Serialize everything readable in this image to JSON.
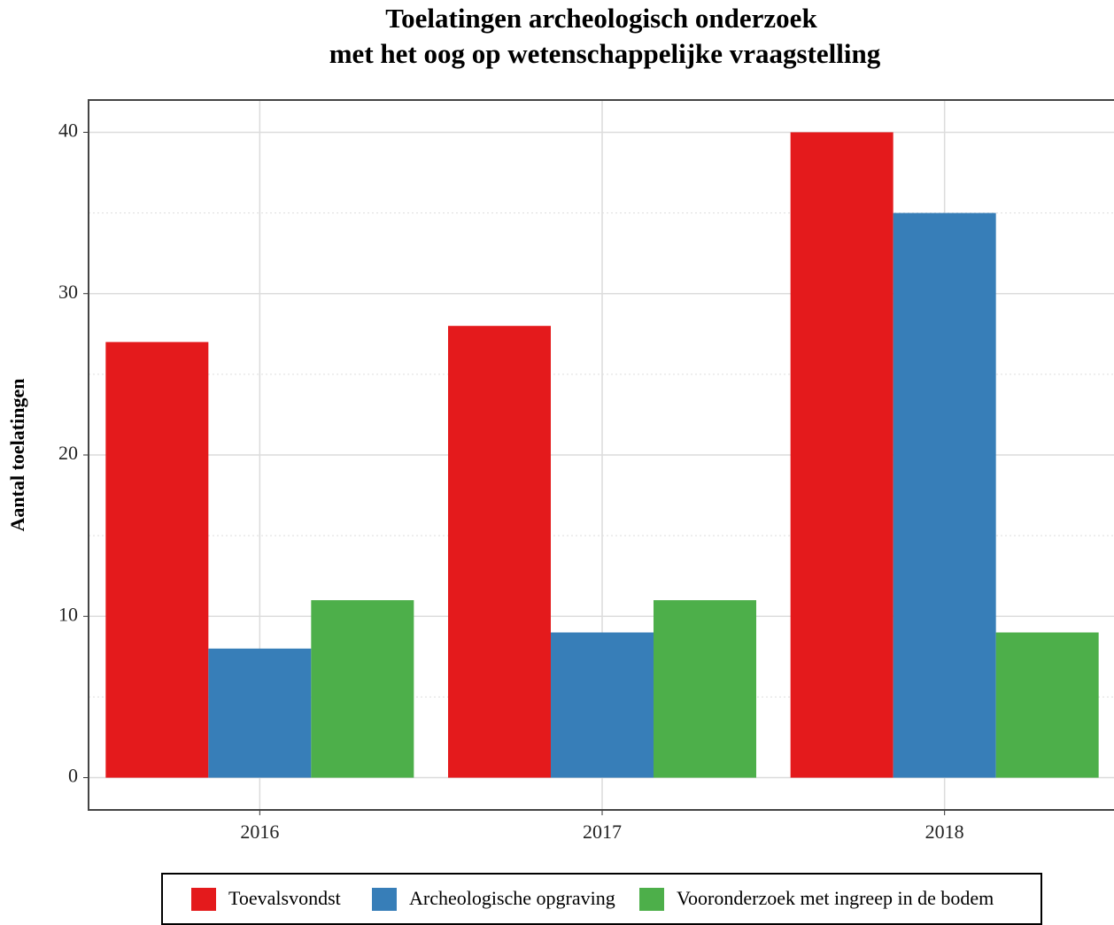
{
  "chart_data": {
    "type": "bar",
    "title": [
      "Toelatingen archeologisch onderzoek",
      "met het oog op wetenschappelijke vraagstelling"
    ],
    "y_label": "Aantal toelatingen",
    "categories": [
      "2016",
      "2017",
      "2018"
    ],
    "series": [
      {
        "name": "Toevalsvondst",
        "color": "#e41a1c",
        "values": [
          27,
          28,
          40
        ]
      },
      {
        "name": "Archeologische opgraving",
        "color": "#377eb8",
        "values": [
          8,
          9,
          35
        ]
      },
      {
        "name": "Vooronderzoek met ingreep in de bodem",
        "color": "#4daf4a",
        "values": [
          11,
          11,
          9
        ]
      }
    ],
    "ylim": [
      -2,
      42
    ],
    "yticks": [
      0,
      10,
      20,
      30,
      40
    ],
    "y_minor_ticks": [
      5,
      15,
      25,
      35
    ],
    "grid": true,
    "legend": "bottom"
  }
}
